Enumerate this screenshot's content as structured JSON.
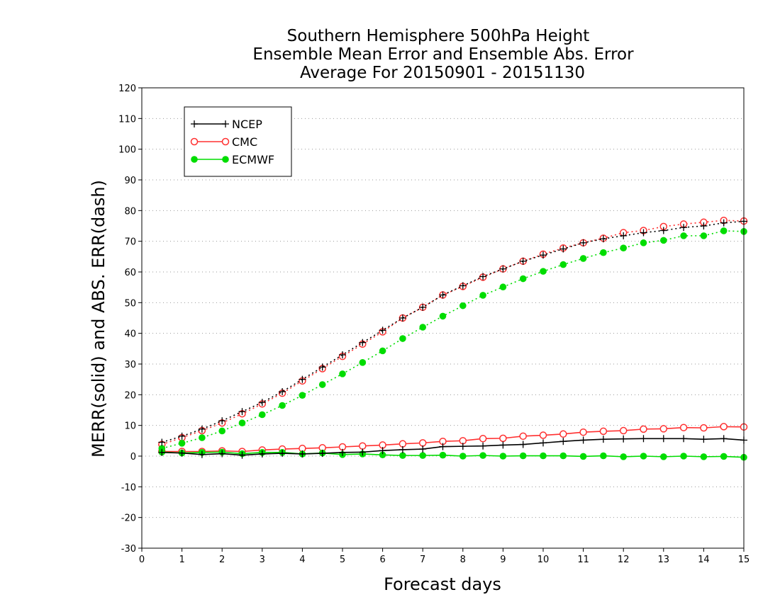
{
  "chart_data": {
    "type": "line",
    "title": [
      "Southern Hemisphere 500hPa Height",
      "Ensemble Mean Error and Ensemble Abs. Error",
      "Average For 20150901 - 20151130"
    ],
    "xlabel": "Forecast days",
    "ylabel": "MERR(solid) and ABS. ERR(dash)",
    "xlim": [
      0,
      15
    ],
    "ylim": [
      -30,
      120
    ],
    "xticks": [
      0,
      1,
      2,
      3,
      4,
      5,
      6,
      7,
      8,
      9,
      10,
      11,
      12,
      13,
      14,
      15
    ],
    "yticks": [
      -30,
      -20,
      -10,
      0,
      10,
      20,
      30,
      40,
      50,
      60,
      70,
      80,
      90,
      100,
      110,
      120
    ],
    "grid": true,
    "legend_position": "top-left",
    "x": [
      0.5,
      1,
      1.5,
      2,
      2.5,
      3,
      3.5,
      4,
      4.5,
      5,
      5.5,
      6,
      6.5,
      7,
      7.5,
      8,
      8.5,
      9,
      9.5,
      10,
      10.5,
      11,
      11.5,
      12,
      12.5,
      13,
      13.5,
      14,
      14.5,
      15
    ],
    "series": [
      {
        "name": "NCEP",
        "color": "#000000",
        "marker": "plus",
        "mean_error": [
          1.2,
          1.0,
          0.5,
          0.8,
          0.3,
          0.7,
          0.9,
          0.7,
          0.9,
          1.2,
          1.3,
          1.8,
          2.1,
          2.3,
          3.1,
          3.2,
          3.3,
          3.6,
          3.8,
          4.3,
          4.8,
          5.2,
          5.5,
          5.6,
          5.7,
          5.7,
          5.7,
          5.5,
          5.7,
          5.2
        ],
        "abs_error": [
          4.5,
          6.5,
          8.8,
          11.5,
          14.5,
          17.5,
          21.0,
          25.0,
          29.0,
          33.0,
          37.0,
          41.0,
          45.0,
          48.5,
          52.5,
          55.5,
          58.5,
          61.0,
          63.5,
          65.5,
          67.5,
          69.5,
          70.8,
          71.8,
          72.8,
          73.5,
          74.5,
          75.0,
          76.0,
          76.5
        ]
      },
      {
        "name": "CMC",
        "color": "#ff3030",
        "marker": "open-circle",
        "mean_error": [
          1.5,
          1.5,
          1.5,
          1.7,
          1.5,
          2.0,
          2.3,
          2.5,
          2.7,
          3.0,
          3.3,
          3.6,
          4.0,
          4.3,
          4.8,
          5.0,
          5.7,
          5.8,
          6.5,
          6.8,
          7.2,
          7.8,
          8.1,
          8.3,
          8.8,
          8.9,
          9.3,
          9.2,
          9.6,
          9.5
        ],
        "abs_error": [
          3.8,
          6.0,
          8.3,
          10.8,
          13.8,
          17.0,
          20.5,
          24.5,
          28.5,
          32.5,
          36.5,
          40.5,
          45.0,
          48.5,
          52.5,
          55.3,
          58.3,
          61.0,
          63.5,
          65.8,
          67.8,
          69.5,
          71.0,
          72.8,
          73.5,
          74.8,
          75.6,
          76.2,
          76.8,
          76.6
        ]
      },
      {
        "name": "ECMWF",
        "color": "#00dd00",
        "marker": "filled-circle",
        "mean_error": [
          1.3,
          1.0,
          1.2,
          1.3,
          0.8,
          1.2,
          1.2,
          0.7,
          1.0,
          0.5,
          0.7,
          0.4,
          0.2,
          0.2,
          0.3,
          0.0,
          0.2,
          0.0,
          0.1,
          0.1,
          0.1,
          -0.1,
          0.1,
          -0.2,
          0.0,
          -0.2,
          0.0,
          -0.2,
          -0.1,
          -0.4
        ],
        "abs_error": [
          2.5,
          4.2,
          6.0,
          8.2,
          10.8,
          13.5,
          16.5,
          19.8,
          23.3,
          26.8,
          30.5,
          34.3,
          38.3,
          42.0,
          45.6,
          49.0,
          52.4,
          55.1,
          57.8,
          60.2,
          62.4,
          64.4,
          66.3,
          67.8,
          69.5,
          70.3,
          71.8,
          71.8,
          73.4,
          73.2
        ]
      }
    ]
  }
}
